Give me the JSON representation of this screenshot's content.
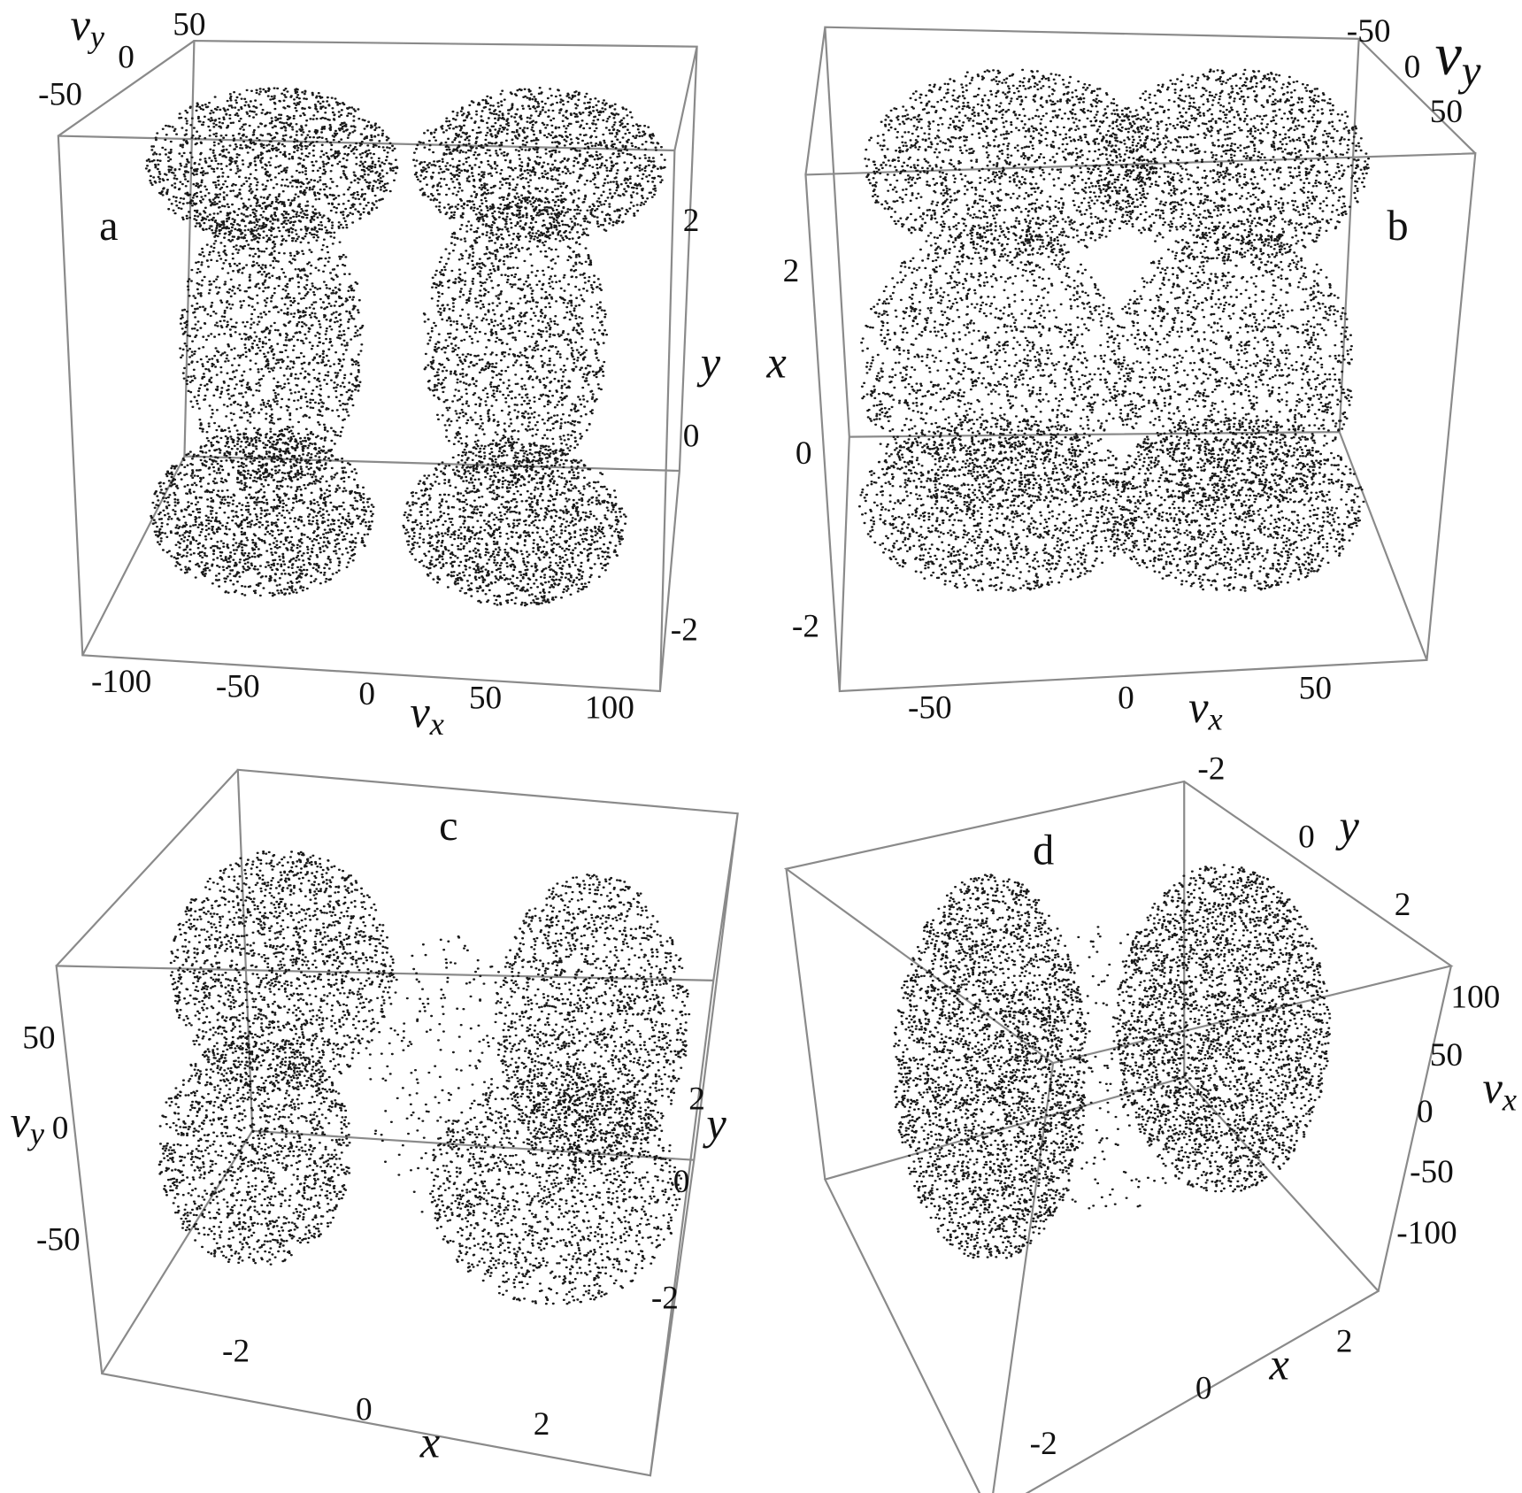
{
  "panels": [
    {
      "label": "a",
      "axes": [
        {
          "name": {
            "base": "v",
            "sub": "y"
          },
          "ticks": [
            "50",
            "0",
            "-50"
          ]
        },
        {
          "name": {
            "base": "y"
          },
          "ticks": [
            "2",
            "0",
            "-2"
          ]
        },
        {
          "name": {
            "base": "v",
            "sub": "x"
          },
          "ticks": [
            "-100",
            "-50",
            "0",
            "50",
            "100"
          ]
        }
      ]
    },
    {
      "label": "b",
      "axes": [
        {
          "name": {
            "base": "v",
            "sub": "y"
          },
          "ticks": [
            "-50",
            "0",
            "50"
          ]
        },
        {
          "name": {
            "base": "x"
          },
          "ticks": [
            "2",
            "0",
            "-2"
          ]
        },
        {
          "name": {
            "base": "v",
            "sub": "x"
          },
          "ticks": [
            "-50",
            "0",
            "50"
          ]
        }
      ]
    },
    {
      "label": "c",
      "axes": [
        {
          "name": {
            "base": "v",
            "sub": "y"
          },
          "ticks": [
            "50",
            "0",
            "-50"
          ]
        },
        {
          "name": {
            "base": "y"
          },
          "ticks": [
            "2",
            "0",
            "-2"
          ]
        },
        {
          "name": {
            "base": "x"
          },
          "ticks": [
            "-2",
            "0",
            "2"
          ]
        }
      ]
    },
    {
      "label": "d",
      "axes": [
        {
          "name": {
            "base": "y"
          },
          "ticks": [
            "-2",
            "0",
            "2"
          ]
        },
        {
          "name": {
            "base": "v",
            "sub": "x"
          },
          "ticks": [
            "100",
            "50",
            "0",
            "-50",
            "-100"
          ]
        },
        {
          "name": {
            "base": "x"
          },
          "ticks": [
            "2",
            "0",
            "-2"
          ]
        }
      ]
    }
  ]
}
